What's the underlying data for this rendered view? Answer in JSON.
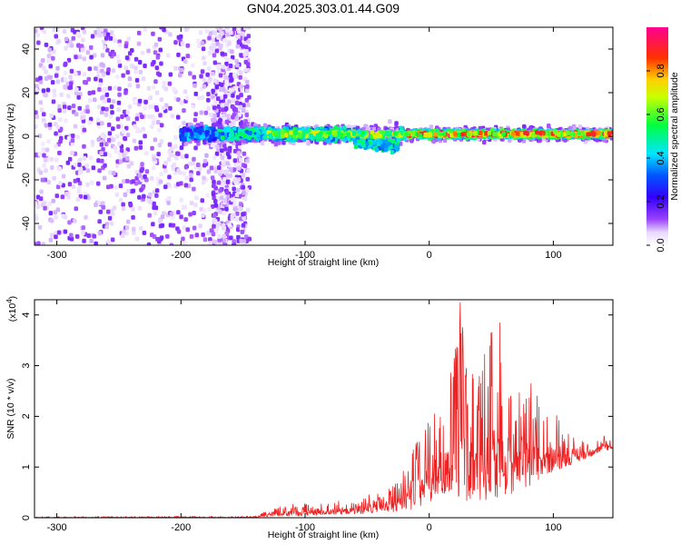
{
  "figure": {
    "title": "GN04.2025.303.01.44.G09"
  },
  "chart_data": [
    {
      "type": "heatmap",
      "xlabel": "Height of straight line (km)",
      "ylabel": "Frequency (Hz)",
      "xlim": [
        -318,
        148
      ],
      "ylim": [
        -50,
        50
      ],
      "xticks": [
        -300,
        -200,
        -100,
        0,
        100
      ],
      "yticks": [
        -40,
        -20,
        0,
        20,
        40
      ],
      "grid": false,
      "colorbar": {
        "label": "Normalized spectral amplitude",
        "range": [
          0,
          1
        ],
        "ticks": [
          0.0,
          0.2,
          0.4,
          0.6,
          0.8
        ],
        "tick_labels": [
          "0.0",
          "0.2",
          "0.4",
          "0.6",
          "0.8"
        ],
        "colormap": [
          "#ffffff",
          "#7f00ff",
          "#0000ff",
          "#00ffff",
          "#00ff00",
          "#ffff00",
          "#ff0000",
          "#ff00aa"
        ]
      },
      "description_regions": [
        {
          "x": [
            -318,
            -150
          ],
          "y": [
            -50,
            50
          ],
          "amplitude": 0.08,
          "pattern": "scattered noise"
        },
        {
          "x": [
            -200,
            148
          ],
          "y": [
            -6,
            6
          ],
          "amplitude": 0.35,
          "pattern": "horizontal band near 0 Hz"
        },
        {
          "x": [
            -20,
            148
          ],
          "y": [
            -2,
            3
          ],
          "amplitude": 0.8,
          "pattern": "strong core near 1 Hz"
        }
      ]
    },
    {
      "type": "line",
      "xlabel": "Height of straight line (km)",
      "ylabel": "SNR (10 * v/v)",
      "multiplier_label": "(x10",
      "multiplier_exponent": "4",
      "multiplier_close": ")",
      "xlim": [
        -318,
        148
      ],
      "ylim": [
        0,
        4.3
      ],
      "xticks": [
        -300,
        -200,
        -100,
        0,
        100
      ],
      "yticks": [
        0,
        1,
        2,
        3,
        4
      ],
      "grid": false,
      "series": [
        {
          "color": "#ee2222",
          "envelope": {
            "x": [
              -318,
              -140,
              -130,
              -110,
              -90,
              -70,
              -50,
              -30,
              -10,
              0,
              10,
              20,
              25,
              30,
              40,
              50,
              57,
              60,
              70,
              80,
              90,
              100,
              110,
              120,
              130,
              140,
              148
            ],
            "low": [
              0.0,
              0.0,
              0.02,
              0.03,
              0.04,
              0.06,
              0.08,
              0.1,
              0.15,
              0.3,
              0.45,
              0.35,
              0.4,
              0.3,
              0.35,
              0.3,
              0.4,
              0.4,
              0.45,
              0.6,
              0.75,
              0.9,
              1.0,
              1.1,
              1.2,
              1.3,
              1.35
            ],
            "high": [
              0.02,
              0.03,
              0.15,
              0.3,
              0.28,
              0.35,
              0.45,
              0.6,
              1.5,
              2.0,
              2.6,
              3.1,
              4.25,
              2.9,
              2.9,
              3.65,
              3.85,
              2.7,
              2.5,
              2.65,
              2.4,
              2.15,
              1.75,
              1.5,
              1.6,
              1.65,
              1.55
            ]
          },
          "peaks": [
            {
              "x": 25,
              "y": 4.25
            },
            {
              "x": 50,
              "y": 3.65
            },
            {
              "x": 57,
              "y": 3.85
            },
            {
              "x": 20,
              "y": 3.15
            },
            {
              "x": 30,
              "y": 2.95
            },
            {
              "x": 43,
              "y": 2.9
            },
            {
              "x": 82,
              "y": 2.65
            }
          ]
        }
      ]
    }
  ]
}
